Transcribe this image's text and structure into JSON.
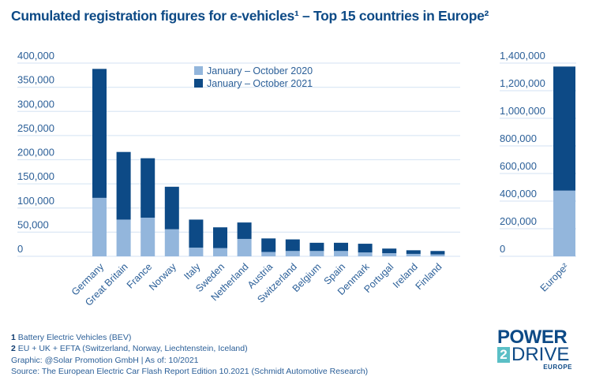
{
  "title": "Cumulated registration figures for e-vehicles¹ – Top 15 countries in Europe²",
  "colors": {
    "y2020": "#93b6dc",
    "y2021": "#0d4a86",
    "grid": "#dce8f5",
    "text": "#2b5f98"
  },
  "chart_data": [
    {
      "type": "bar",
      "stacked": true,
      "categories": [
        "Germany",
        "Great Britain",
        "France",
        "Norway",
        "Italy",
        "Sweden",
        "Netherland",
        "Austria",
        "Switzerland",
        "Belgium",
        "Spain",
        "Denmark",
        "Portugal",
        "Ireland",
        "Finland"
      ],
      "series": [
        {
          "name": "January – October 2020",
          "values": [
            121000,
            76000,
            80000,
            56000,
            18000,
            17000,
            36000,
            9000,
            11000,
            11000,
            11000,
            8000,
            6500,
            5000,
            4000
          ]
        },
        {
          "name": "January – October 2021",
          "values": [
            267000,
            140000,
            123000,
            88000,
            58000,
            43000,
            34000,
            28000,
            24000,
            17000,
            17000,
            18000,
            9500,
            7500,
            7000
          ]
        }
      ],
      "yticks": [
        "0",
        "50,000",
        "100,000",
        "150,000",
        "200,000",
        "250,000",
        "300,000",
        "350,000",
        "400,000"
      ],
      "ylim": [
        0,
        400000
      ],
      "grid": true,
      "legend": "top-center"
    },
    {
      "type": "bar",
      "stacked": true,
      "categories": [
        "Europe²"
      ],
      "series": [
        {
          "name": "January – October 2020",
          "values": [
            476000
          ]
        },
        {
          "name": "January – October 2021",
          "values": [
            899000
          ]
        }
      ],
      "yticks": [
        "0",
        "200,000",
        "400,000",
        "600,000",
        "800,000",
        "1,000,000",
        "1,200,000",
        "1,400,000"
      ],
      "ylim": [
        0,
        1400000
      ],
      "grid": true
    }
  ],
  "footnotes": {
    "n1_num": "1",
    "n1_text": "Battery Electric Vehicles (BEV)",
    "n2_num": "2",
    "n2_text": "EU + UK + EFTA (Switzerland, Norway, Liechtenstein, Iceland)",
    "graphic": "Graphic: @Solar Promotion GmbH | As of: 10/2021",
    "source": "Source: The European Electric Car Flash Report Edition 10.2021 (Schmidt Automotive Research)"
  },
  "logo": {
    "line1": "POWER",
    "two": "2",
    "line2": "DRIVE",
    "line3": "EUROPE"
  }
}
